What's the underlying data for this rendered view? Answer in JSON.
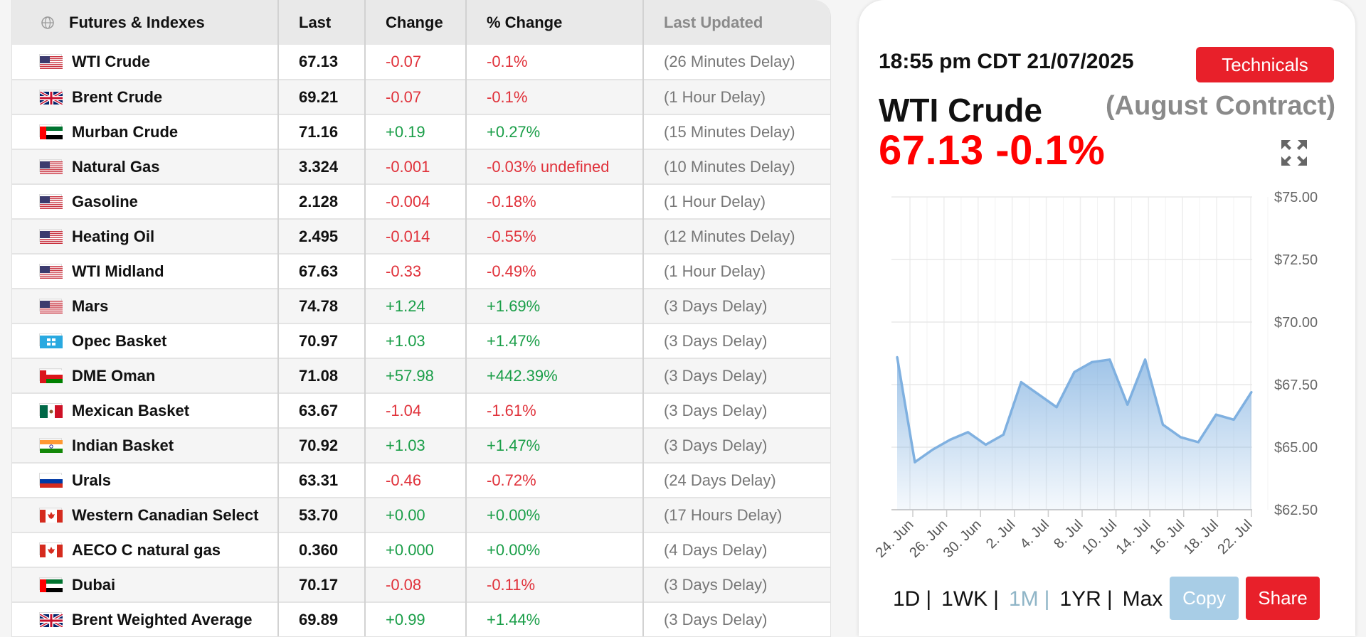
{
  "table": {
    "headers": [
      "Futures & Indexes",
      "Last",
      "Change",
      "% Change",
      "Last Updated"
    ],
    "rows": [
      {
        "flag": "us",
        "name": "WTI Crude",
        "last": "67.13",
        "change": "-0.07",
        "pct": "-0.1%",
        "updated": "(26 Minutes Delay)",
        "dir": "neg"
      },
      {
        "flag": "uk",
        "name": "Brent Crude",
        "last": "69.21",
        "change": "-0.07",
        "pct": "-0.1%",
        "updated": "(1 Hour Delay)",
        "dir": "neg"
      },
      {
        "flag": "ae",
        "name": "Murban Crude",
        "last": "71.16",
        "change": "+0.19",
        "pct": "+0.27%",
        "updated": "(15 Minutes Delay)",
        "dir": "pos"
      },
      {
        "flag": "us",
        "name": "Natural Gas",
        "last": "3.324",
        "change": "-0.001",
        "pct": "-0.03% undefined",
        "updated": "(10 Minutes Delay)",
        "dir": "neg"
      },
      {
        "flag": "us",
        "name": "Gasoline",
        "last": "2.128",
        "change": "-0.004",
        "pct": "-0.18%",
        "updated": "(1 Hour Delay)",
        "dir": "neg"
      },
      {
        "flag": "us",
        "name": "Heating Oil",
        "last": "2.495",
        "change": "-0.014",
        "pct": "-0.55%",
        "updated": "(12 Minutes Delay)",
        "dir": "neg"
      },
      {
        "flag": "us",
        "name": "WTI Midland",
        "last": "67.63",
        "change": "-0.33",
        "pct": "-0.49%",
        "updated": "(1 Hour Delay)",
        "dir": "neg"
      },
      {
        "flag": "us",
        "name": "Mars",
        "last": "74.78",
        "change": "+1.24",
        "pct": "+1.69%",
        "updated": "(3 Days Delay)",
        "dir": "pos"
      },
      {
        "flag": "opec",
        "name": "Opec Basket",
        "last": "70.97",
        "change": "+1.03",
        "pct": "+1.47%",
        "updated": "(3 Days Delay)",
        "dir": "pos"
      },
      {
        "flag": "om",
        "name": "DME Oman",
        "last": "71.08",
        "change": "+57.98",
        "pct": "+442.39%",
        "updated": "(3 Days Delay)",
        "dir": "pos"
      },
      {
        "flag": "mx",
        "name": "Mexican Basket",
        "last": "63.67",
        "change": "-1.04",
        "pct": "-1.61%",
        "updated": "(3 Days Delay)",
        "dir": "neg"
      },
      {
        "flag": "in",
        "name": "Indian Basket",
        "last": "70.92",
        "change": "+1.03",
        "pct": "+1.47%",
        "updated": "(3 Days Delay)",
        "dir": "pos"
      },
      {
        "flag": "ru",
        "name": "Urals",
        "last": "63.31",
        "change": "-0.46",
        "pct": "-0.72%",
        "updated": "(24 Days Delay)",
        "dir": "neg"
      },
      {
        "flag": "ca",
        "name": "Western Canadian Select",
        "last": "53.70",
        "change": "+0.00",
        "pct": "+0.00%",
        "updated": "(17 Hours Delay)",
        "dir": "pos"
      },
      {
        "flag": "ca",
        "name": "AECO C natural gas",
        "last": "0.360",
        "change": "+0.000",
        "pct": "+0.00%",
        "updated": "(4 Days Delay)",
        "dir": "pos"
      },
      {
        "flag": "ae",
        "name": "Dubai",
        "last": "70.17",
        "change": "-0.08",
        "pct": "-0.11%",
        "updated": "(3 Days Delay)",
        "dir": "neg"
      },
      {
        "flag": "uk",
        "name": "Brent Weighted Average",
        "last": "69.89",
        "change": "+0.99",
        "pct": "+1.44%",
        "updated": "(3 Days Delay)",
        "dir": "pos"
      }
    ]
  },
  "panel": {
    "timestamp": "18:55 pm CDT 21/07/2025",
    "technicals_label": "Technicals",
    "title": "WTI Crude",
    "contract": "(August Contract)",
    "price_line": "67.13 -0.1%",
    "ranges": [
      "1D",
      "1WK",
      "1M",
      "1YR",
      "Max"
    ],
    "active_range": "1M",
    "copy_label": "Copy",
    "share_label": "Share"
  },
  "colors": {
    "negative": "#e0313a",
    "positive": "#1a9e48",
    "accent_red": "#e8202a",
    "line": "#7fb0e0",
    "copy": "#a8cde6"
  },
  "chart_data": {
    "type": "area",
    "x_ticks": [
      "24. Jun",
      "26. Jun",
      "30. Jun",
      "2. Jul",
      "4. Jul",
      "8. Jul",
      "10. Jul",
      "14. Jul",
      "16. Jul",
      "18. Jul",
      "22. Jul"
    ],
    "y_ticks": [
      "$75.00",
      "$72.50",
      "$70.00",
      "$67.50",
      "$65.00",
      "$62.50"
    ],
    "ylim": [
      62.5,
      75
    ],
    "grid": true,
    "series": [
      {
        "values": [
          68.6,
          64.4,
          64.9,
          65.3,
          65.6,
          65.1,
          65.5,
          67.6,
          67.1,
          66.6,
          68.0,
          68.4,
          68.5,
          66.7,
          68.5,
          65.9,
          65.4,
          65.2,
          66.3,
          66.1,
          67.2
        ]
      }
    ]
  }
}
